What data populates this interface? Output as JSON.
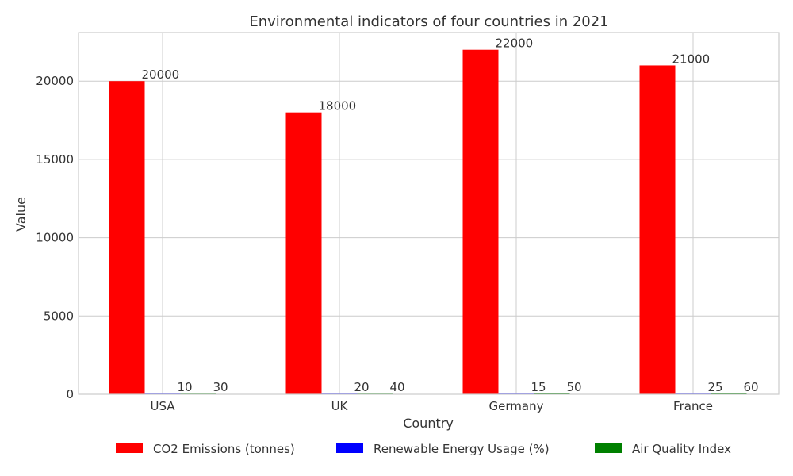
{
  "chart_data": {
    "type": "bar",
    "title": "Environmental indicators of four countries in 2021",
    "xlabel": "Country",
    "ylabel": "Value",
    "categories": [
      "USA",
      "UK",
      "Germany",
      "France"
    ],
    "ylim": [
      0,
      23100
    ],
    "yticks": [
      0,
      5000,
      10000,
      15000,
      20000
    ],
    "grid": true,
    "legend_position": "bottom",
    "series": [
      {
        "name": "CO2 Emissions (tonnes)",
        "color": "#ff0000",
        "values": [
          20000,
          18000,
          22000,
          21000
        ]
      },
      {
        "name": "Renewable Energy Usage (%)",
        "color": "#0000ff",
        "values": [
          10,
          20,
          15,
          25
        ]
      },
      {
        "name": "Air Quality Index",
        "color": "#008000",
        "values": [
          30,
          40,
          50,
          60
        ]
      }
    ]
  }
}
